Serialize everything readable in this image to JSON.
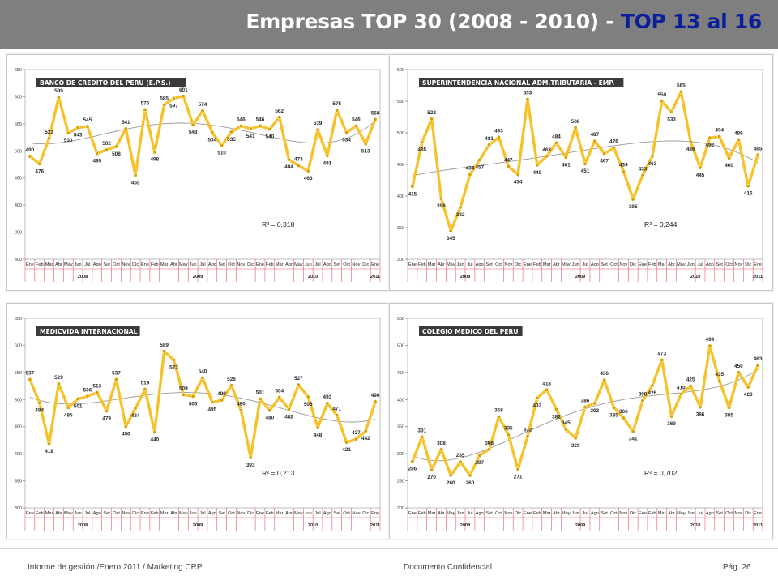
{
  "header": {
    "title_main": "Empresas TOP 30 (2008 - 2010) - ",
    "title_accent": "TOP 13 al 16",
    "accent_color": "#0b1f99",
    "bar_color": "#7f7f7f"
  },
  "footer": {
    "left": "Informe de gestión /Enero 2011 / Marketing CRP",
    "center": "Documento Confidencial",
    "right": "Pág. 26"
  },
  "colors": {
    "line": "#f5c22b",
    "point": "#d9a400",
    "trend": "#9a9a9a",
    "title_bg": "#3a3a3a",
    "title_fg": "#ffffff"
  },
  "chart_data": [
    {
      "type": "line",
      "title": "BANCO DE CREDITO DEL PERU (E.P.S.)",
      "categories": [
        "Ene",
        "Feb",
        "Mar",
        "Abr",
        "May",
        "Jun",
        "Jul",
        "Ago",
        "Set",
        "Oct",
        "Nov",
        "Dic",
        "Ene",
        "Feb",
        "Mar",
        "Abr",
        "May",
        "Jun",
        "Jul",
        "Ago",
        "Set",
        "Oct",
        "Nov",
        "Dic",
        "Ene",
        "Feb",
        "Mar",
        "Abr",
        "May",
        "Jun",
        "Jul",
        "Ago",
        "Set",
        "Oct",
        "Nov",
        "Dic",
        "Ene"
      ],
      "values": [
        490,
        476,
        523,
        599,
        533,
        543,
        545,
        495,
        502,
        508,
        541,
        455,
        576,
        498,
        585,
        597,
        601,
        548,
        574,
        534,
        510,
        535,
        546,
        541,
        546,
        540,
        562,
        484,
        473,
        463,
        539,
        491,
        575,
        534,
        546,
        513,
        558
      ],
      "years": [
        "2008",
        "2009",
        "2010",
        "2011"
      ],
      "ylim": [
        300,
        650
      ],
      "yticks": [
        300,
        350,
        400,
        450,
        500,
        550,
        600,
        650
      ],
      "r2": "R² = 0,318"
    },
    {
      "type": "line",
      "title": "SUPERINTENDENCIA NACIONAL ADM.TRIBUTARIA - EMP.",
      "categories": [
        "Ene",
        "Feb",
        "Mar",
        "Abr",
        "May",
        "Jun",
        "Jul",
        "Ago",
        "Set",
        "Oct",
        "Nov",
        "Dic",
        "Ene",
        "Feb",
        "Mar",
        "Abr",
        "May",
        "Jun",
        "Jul",
        "Ago",
        "Set",
        "Oct",
        "Nov",
        "Dic",
        "Ene",
        "Feb",
        "Mar",
        "Abr",
        "May",
        "Jun",
        "Jul",
        "Ago",
        "Set",
        "Oct",
        "Nov",
        "Dic",
        "Ene"
      ],
      "values": [
        415,
        485,
        522,
        396,
        345,
        382,
        434,
        457,
        481,
        493,
        447,
        434,
        553,
        449,
        463,
        484,
        461,
        508,
        451,
        487,
        467,
        476,
        439,
        395,
        433,
        463,
        550,
        533,
        565,
        486,
        445,
        492,
        494,
        460,
        489,
        416,
        465
      ],
      "years": [
        "2008",
        "2009",
        "2010",
        "2011"
      ],
      "ylim": [
        300,
        600
      ],
      "yticks": [
        300,
        350,
        400,
        450,
        500,
        550,
        600
      ],
      "r2": "R² = 0,244"
    },
    {
      "type": "line",
      "title": "MEDICVIDA INTERNACIONAL",
      "categories": [
        "Ene",
        "Feb",
        "Mar",
        "Abr",
        "May",
        "Jun",
        "Jul",
        "Ago",
        "Set",
        "Oct",
        "Nov",
        "Dic",
        "Ene",
        "Feb",
        "Mar",
        "Abr",
        "May",
        "Jun",
        "Jul",
        "Ago",
        "Set",
        "Oct",
        "Nov",
        "Dic",
        "Ene",
        "Feb",
        "Mar",
        "Abr",
        "May",
        "Jun",
        "Jul",
        "Ago",
        "Set",
        "Oct",
        "Nov",
        "Dic",
        "Ene"
      ],
      "values": [
        537,
        494,
        418,
        529,
        485,
        501,
        506,
        513,
        479,
        537,
        450,
        484,
        519,
        440,
        589,
        573,
        509,
        506,
        540,
        495,
        499,
        526,
        480,
        393,
        501,
        480,
        504,
        482,
        527,
        505,
        448,
        493,
        471,
        421,
        427,
        442,
        496
      ],
      "years": [
        "2008",
        "2009",
        "2010",
        "2011"
      ],
      "ylim": [
        300,
        650
      ],
      "yticks": [
        300,
        350,
        400,
        450,
        500,
        550,
        600,
        650
      ],
      "r2": "R² = 0,213"
    },
    {
      "type": "line",
      "title": "COLEGIO MEDICO DEL PERU",
      "categories": [
        "Ene",
        "Feb",
        "Mar",
        "Abr",
        "May",
        "Jun",
        "Jul",
        "Ago",
        "Set",
        "Oct",
        "Nov",
        "Dic",
        "Ene",
        "Feb",
        "Mar",
        "Abr",
        "May",
        "Jun",
        "Jul",
        "Ago",
        "Set",
        "Oct",
        "Nov",
        "Dic",
        "Ene",
        "Feb",
        "Mar",
        "Abr",
        "May",
        "Jun",
        "Jul",
        "Ago",
        "Set",
        "Oct",
        "Nov",
        "Dic",
        "Ene"
      ],
      "values": [
        286,
        331,
        270,
        308,
        260,
        285,
        260,
        297,
        308,
        368,
        335,
        271,
        332,
        403,
        418,
        382,
        345,
        329,
        386,
        393,
        436,
        385,
        366,
        341,
        398,
        426,
        473,
        369,
        410,
        425,
        386,
        499,
        435,
        385,
        450,
        423,
        463
      ],
      "years": [
        "2008",
        "2009",
        "2010",
        "2011"
      ],
      "ylim": [
        200,
        550
      ],
      "yticks": [
        200,
        250,
        300,
        350,
        400,
        450,
        500,
        550
      ],
      "r2": "R² = 0,702"
    }
  ]
}
